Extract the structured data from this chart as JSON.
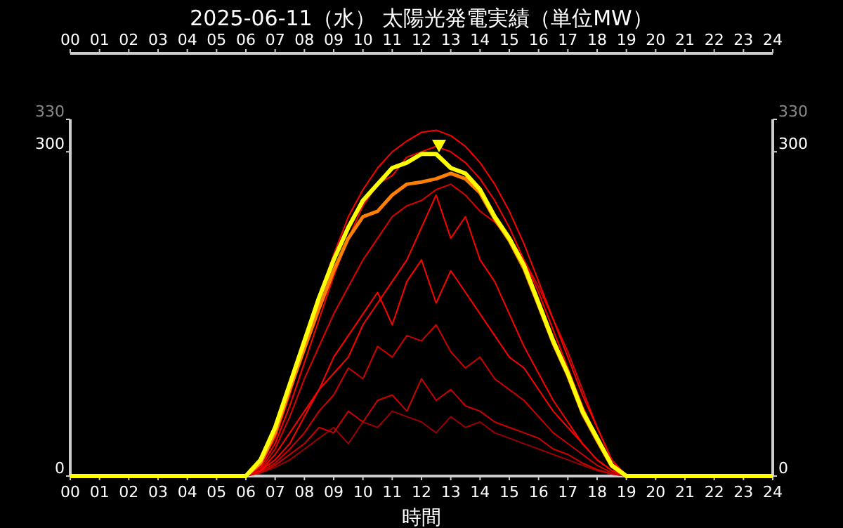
{
  "chart_data": {
    "type": "line",
    "title": "2025-06-11（水） 太陽光発電実績（単位MW）",
    "xlabel": "時間",
    "x": [
      0,
      5.5,
      6,
      6.5,
      7,
      7.5,
      8,
      8.5,
      9,
      9.5,
      10,
      10.5,
      11,
      11.5,
      12,
      12.5,
      13,
      13.5,
      14,
      14.5,
      15,
      15.5,
      16,
      16.5,
      17,
      17.5,
      18,
      18.5,
      19,
      19.5,
      24
    ],
    "xlim": [
      0,
      24
    ],
    "xticks": [
      {
        "value": 0,
        "label": "00"
      },
      {
        "value": 1,
        "label": "01"
      },
      {
        "value": 2,
        "label": "02"
      },
      {
        "value": 3,
        "label": "03"
      },
      {
        "value": 4,
        "label": "04"
      },
      {
        "value": 5,
        "label": "05"
      },
      {
        "value": 6,
        "label": "06"
      },
      {
        "value": 7,
        "label": "07"
      },
      {
        "value": 8,
        "label": "08"
      },
      {
        "value": 9,
        "label": "09"
      },
      {
        "value": 10,
        "label": "10"
      },
      {
        "value": 11,
        "label": "11"
      },
      {
        "value": 12,
        "label": "12"
      },
      {
        "value": 13,
        "label": "13"
      },
      {
        "value": 14,
        "label": "14"
      },
      {
        "value": 15,
        "label": "15"
      },
      {
        "value": 16,
        "label": "16"
      },
      {
        "value": 17,
        "label": "17"
      },
      {
        "value": 18,
        "label": "18"
      },
      {
        "value": 19,
        "label": "19"
      },
      {
        "value": 20,
        "label": "20"
      },
      {
        "value": 21,
        "label": "21"
      },
      {
        "value": 22,
        "label": "22"
      },
      {
        "value": 23,
        "label": "23"
      },
      {
        "value": 24,
        "label": "24"
      }
    ],
    "x2lim": [
      0,
      24
    ],
    "x2ticks": [
      {
        "value": 0,
        "label": "00"
      },
      {
        "value": 1,
        "label": "01"
      },
      {
        "value": 2,
        "label": "02"
      },
      {
        "value": 3,
        "label": "03"
      },
      {
        "value": 4,
        "label": "04"
      },
      {
        "value": 5,
        "label": "05"
      },
      {
        "value": 6,
        "label": "06"
      },
      {
        "value": 7,
        "label": "07"
      },
      {
        "value": 8,
        "label": "08"
      },
      {
        "value": 9,
        "label": "09"
      },
      {
        "value": 10,
        "label": "10"
      },
      {
        "value": 11,
        "label": "11"
      },
      {
        "value": 12,
        "label": "12"
      },
      {
        "value": 13,
        "label": "13"
      },
      {
        "value": 14,
        "label": "14"
      },
      {
        "value": 15,
        "label": "15"
      },
      {
        "value": 16,
        "label": "16"
      },
      {
        "value": 17,
        "label": "17"
      },
      {
        "value": 18,
        "label": "18"
      },
      {
        "value": 19,
        "label": "19"
      },
      {
        "value": 20,
        "label": "20"
      },
      {
        "value": 21,
        "label": "21"
      },
      {
        "value": 22,
        "label": "22"
      },
      {
        "value": 23,
        "label": "23"
      },
      {
        "value": 24,
        "label": "24"
      }
    ],
    "ylim": [
      0,
      330
    ],
    "yticks": [
      0,
      300,
      330
    ],
    "y2lim": [
      0,
      330
    ],
    "y2ticks": [
      0,
      300,
      330
    ],
    "grid": false,
    "series": [
      {
        "color": "#990000",
        "values": [
          0,
          0,
          0,
          3,
          8,
          15,
          25,
          35,
          45,
          30,
          50,
          45,
          60,
          55,
          50,
          40,
          55,
          45,
          50,
          40,
          35,
          30,
          25,
          20,
          15,
          10,
          5,
          2,
          0,
          0,
          0
        ]
      },
      {
        "color": "#cc0000",
        "values": [
          0,
          0,
          0,
          4,
          12,
          25,
          40,
          60,
          75,
          100,
          90,
          120,
          110,
          130,
          125,
          140,
          115,
          100,
          110,
          90,
          80,
          70,
          55,
          40,
          30,
          20,
          10,
          3,
          0,
          0,
          0
        ]
      },
      {
        "color": "#cc0000",
        "values": [
          0,
          0,
          0,
          3,
          10,
          20,
          30,
          45,
          40,
          60,
          50,
          70,
          75,
          60,
          90,
          70,
          80,
          65,
          60,
          50,
          45,
          40,
          35,
          25,
          20,
          12,
          6,
          2,
          0,
          0,
          0
        ]
      },
      {
        "color": "#ff0000",
        "values": [
          0,
          0,
          0,
          5,
          20,
          40,
          60,
          80,
          110,
          130,
          150,
          170,
          140,
          180,
          200,
          160,
          190,
          170,
          150,
          130,
          110,
          100,
          80,
          60,
          45,
          30,
          15,
          5,
          0,
          0,
          0
        ]
      },
      {
        "color": "#ff0000",
        "values": [
          0,
          0,
          0,
          5,
          15,
          30,
          55,
          80,
          95,
          110,
          140,
          160,
          180,
          200,
          230,
          260,
          220,
          240,
          200,
          180,
          150,
          120,
          95,
          70,
          50,
          30,
          15,
          5,
          0,
          0,
          0
        ]
      },
      {
        "color": "#dd0000",
        "values": [
          0,
          0,
          0,
          6,
          25,
          55,
          90,
          120,
          150,
          175,
          200,
          220,
          240,
          250,
          255,
          265,
          270,
          260,
          245,
          235,
          220,
          200,
          175,
          145,
          115,
          80,
          45,
          15,
          0,
          0,
          0
        ]
      },
      {
        "color": "#ff0000",
        "values": [
          0,
          0,
          0,
          8,
          30,
          65,
          105,
          145,
          185,
          220,
          250,
          270,
          278,
          295,
          300,
          305,
          300,
          290,
          275,
          255,
          230,
          200,
          170,
          135,
          100,
          65,
          35,
          10,
          0,
          0,
          0
        ]
      },
      {
        "color": "#ff0000",
        "values": [
          0,
          0,
          0,
          10,
          35,
          75,
          120,
          165,
          205,
          240,
          265,
          285,
          300,
          310,
          318,
          320,
          315,
          305,
          290,
          270,
          245,
          215,
          180,
          145,
          110,
          75,
          45,
          15,
          0,
          0,
          0
        ]
      },
      {
        "color": "#ff8000",
        "values": [
          0,
          0,
          0,
          12,
          40,
          80,
          118,
          155,
          190,
          220,
          240,
          245,
          260,
          270,
          272,
          275,
          280,
          275,
          262,
          238,
          218,
          192,
          158,
          123,
          93,
          58,
          33,
          9,
          0,
          0,
          0
        ]
      },
      {
        "color": "#ffff00",
        "values": [
          0,
          0,
          0,
          15,
          45,
          85,
          125,
          165,
          200,
          230,
          255,
          270,
          285,
          290,
          298,
          298,
          285,
          280,
          265,
          240,
          220,
          195,
          160,
          125,
          95,
          60,
          35,
          10,
          0,
          0,
          0
        ]
      },
      {
        "type": "scatter",
        "marker": "triangle",
        "color": "#ffff00",
        "x": [
          12.6
        ],
        "values": [
          306
        ]
      }
    ]
  }
}
